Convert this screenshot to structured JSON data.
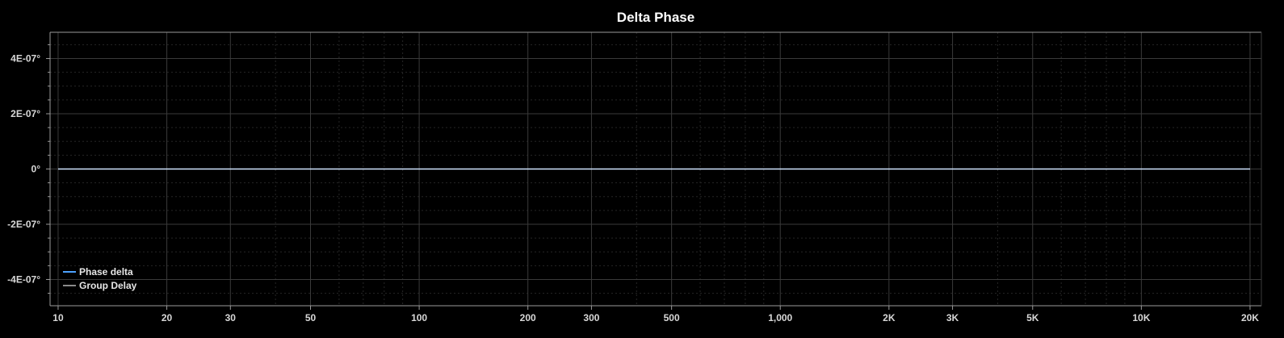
{
  "chart_data": {
    "type": "line",
    "title": "Delta Phase",
    "xlabel": "",
    "ylabel": "",
    "x_scale": "log",
    "xlim": [
      9.5,
      21500
    ],
    "ylim": [
      -4.95e-07,
      4.95e-07
    ],
    "x_ticks": [
      {
        "value": 10,
        "label": "10"
      },
      {
        "value": 20,
        "label": "20"
      },
      {
        "value": 30,
        "label": "30"
      },
      {
        "value": 50,
        "label": "50"
      },
      {
        "value": 100,
        "label": "100"
      },
      {
        "value": 200,
        "label": "200"
      },
      {
        "value": 300,
        "label": "300"
      },
      {
        "value": 500,
        "label": "500"
      },
      {
        "value": 1000,
        "label": "1,000"
      },
      {
        "value": 2000,
        "label": "2K"
      },
      {
        "value": 3000,
        "label": "3K"
      },
      {
        "value": 5000,
        "label": "5K"
      },
      {
        "value": 10000,
        "label": "10K"
      },
      {
        "value": 20000,
        "label": "20K"
      }
    ],
    "y_ticks": [
      {
        "value": 4e-07,
        "label": "4E-07°"
      },
      {
        "value": 2e-07,
        "label": "2E-07°"
      },
      {
        "value": 0,
        "label": "0°"
      },
      {
        "value": -2e-07,
        "label": "-2E-07°"
      },
      {
        "value": -4e-07,
        "label": "-4E-07°"
      }
    ],
    "grid": true,
    "legend_position": "bottom-left",
    "series": [
      {
        "name": "Phase delta",
        "color": "#4da3ff",
        "x": [
          10,
          20000
        ],
        "y": [
          0,
          0
        ]
      },
      {
        "name": "Group Delay",
        "color": "#8a8a8a",
        "x": [],
        "y": []
      }
    ]
  },
  "colors": {
    "background": "#000000",
    "grid_major": "#3a3a3a",
    "grid_minor": "#262626",
    "axis": "#9a9a9a",
    "zero_line": "#d0e4ff"
  }
}
